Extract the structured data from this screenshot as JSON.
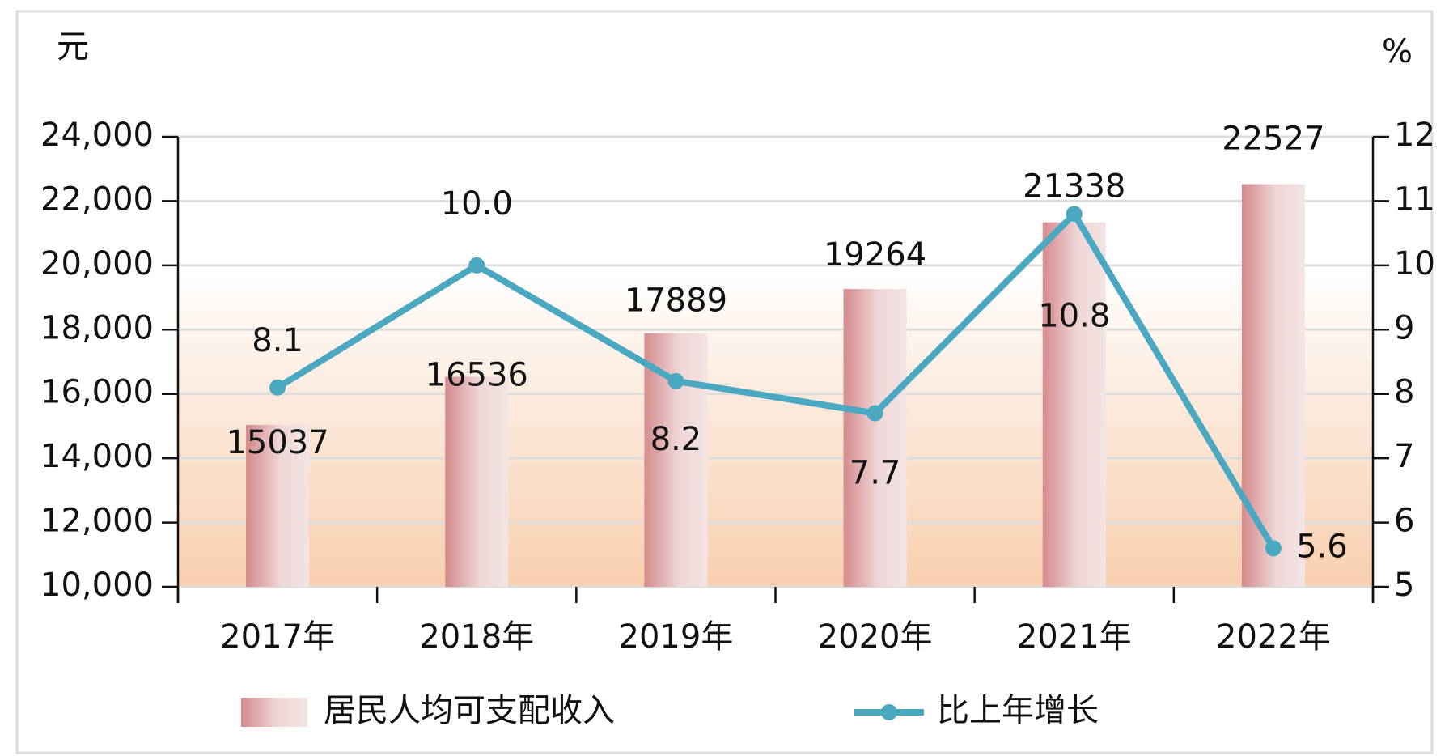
{
  "chart_data": {
    "type": "bar",
    "y_label": "元",
    "y2_label": "%",
    "categories": [
      "2017年",
      "2018年",
      "2019年",
      "2020年",
      "2021年",
      "2022年"
    ],
    "series": [
      {
        "name": "居民人均可支配收入",
        "type": "bar",
        "color": "#d48a8c",
        "values": [
          15037,
          16536,
          17889,
          19264,
          21338,
          22527
        ]
      },
      {
        "name": "比上年增长",
        "type": "line",
        "axis": "y2",
        "color": "#4aa8c0",
        "values": [
          8.1,
          10.0,
          8.2,
          7.7,
          10.8,
          5.6
        ],
        "value_labels": [
          "8.1",
          "10.0",
          "8.2",
          "7.7",
          "10.8",
          "5.6"
        ]
      }
    ],
    "ylim": [
      10000,
      24000
    ],
    "yticks": [
      {
        "value": 10000,
        "label": "10,000"
      },
      {
        "value": 12000,
        "label": "12,000"
      },
      {
        "value": 14000,
        "label": "14,000"
      },
      {
        "value": 16000,
        "label": "16,000"
      },
      {
        "value": 18000,
        "label": "18,000"
      },
      {
        "value": 20000,
        "label": "20,000"
      },
      {
        "value": 22000,
        "label": "22,000"
      },
      {
        "value": 24000,
        "label": "24,000"
      }
    ],
    "y2lim": [
      5,
      12
    ],
    "y2ticks": [
      5,
      6,
      7,
      8,
      9,
      10,
      11,
      12
    ],
    "grid": true
  }
}
